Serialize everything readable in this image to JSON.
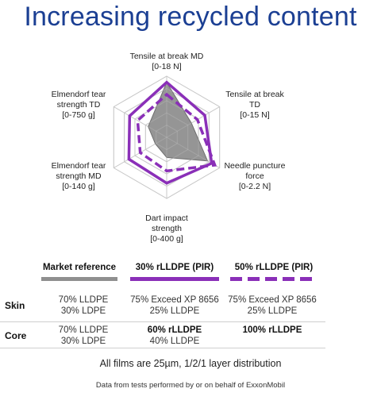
{
  "title": "Increasing recycled content",
  "colors": {
    "title": "#1b3f93",
    "market_reference": "#8f8f8f",
    "series_purple": "#8a2fb8",
    "grid": "#c8c8c8"
  },
  "chart_data": {
    "type": "radar",
    "axes": [
      {
        "label": "Tensile at break MD",
        "range_label": "[0-18 N]",
        "max": 18
      },
      {
        "label": "Tensile at break TD",
        "range_label": "[0-15 N]",
        "max": 15
      },
      {
        "label": "Needle puncture force",
        "range_label": "[0-2.2 N]",
        "max": 2.2
      },
      {
        "label": "Dart impact strength",
        "range_label": "[0-400 g]",
        "max": 400
      },
      {
        "label": "Elmendorf tear strength MD",
        "range_label": "[0-140 g]",
        "max": 140
      },
      {
        "label": "Elmendorf tear strength TD",
        "range_label": "[0-750 g]",
        "max": 750
      }
    ],
    "axis_text": [
      {
        "lines": [
          "Tensile at break MD",
          "[0-18 N]"
        ]
      },
      {
        "lines": [
          "Tensile at break",
          "TD",
          "[0-15 N]"
        ]
      },
      {
        "lines": [
          "Needle puncture",
          "force",
          "[0-2.2 N]"
        ]
      },
      {
        "lines": [
          "Dart impact",
          "strength",
          "[0-400 g]"
        ]
      },
      {
        "lines": [
          "Elmendorf tear",
          "strength MD",
          "[0-140 g]"
        ]
      },
      {
        "lines": [
          "Elmendorf tear",
          "strength TD",
          "[0-750 g]"
        ]
      }
    ],
    "grid_levels": 5,
    "series": [
      {
        "name": "Market reference",
        "style": "fill",
        "color": "#8f8f8f",
        "values": [
          16.2,
          7.0,
          1.7,
          132,
          30,
          262
        ]
      },
      {
        "name": "30% rLLDPE (PIR)",
        "style": "solid",
        "color": "#8a2fb8",
        "values": [
          16.2,
          10.8,
          1.87,
          300,
          100,
          525
        ]
      },
      {
        "name": "50% rLLDPE (PIR)",
        "style": "dashed",
        "color": "#8a2fb8",
        "values": [
          12.6,
          8.7,
          2.0,
          220,
          70,
          412
        ]
      }
    ]
  },
  "legend": {
    "market_reference": "Market reference",
    "rlldpe_30": "30% rLLDPE (PIR)",
    "rlldpe_50": "50% rLLDPE (PIR)"
  },
  "table": {
    "rows": [
      {
        "label": "Skin",
        "cells": [
          {
            "lines": [
              "70% LLDPE",
              "30% LDPE"
            ],
            "bold": [
              false,
              false
            ]
          },
          {
            "lines": [
              "75% Exceed XP 8656",
              "25% LLDPE"
            ],
            "bold": [
              false,
              false
            ]
          },
          {
            "lines": [
              "75% Exceed XP 8656",
              "25% LLDPE"
            ],
            "bold": [
              false,
              false
            ]
          }
        ]
      },
      {
        "label": "Core",
        "cells": [
          {
            "lines": [
              "70% LLDPE",
              "30% LDPE"
            ],
            "bold": [
              false,
              false
            ]
          },
          {
            "lines": [
              "60% rLLDPE",
              "40% LLDPE"
            ],
            "bold": [
              true,
              false
            ]
          },
          {
            "lines": [
              "100% rLLDPE"
            ],
            "bold": [
              true
            ]
          }
        ]
      }
    ]
  },
  "footnote": "All films are 25µm, 1/2/1 layer distribution",
  "source": "Data from tests performed by or on behalf of ExxonMobil"
}
